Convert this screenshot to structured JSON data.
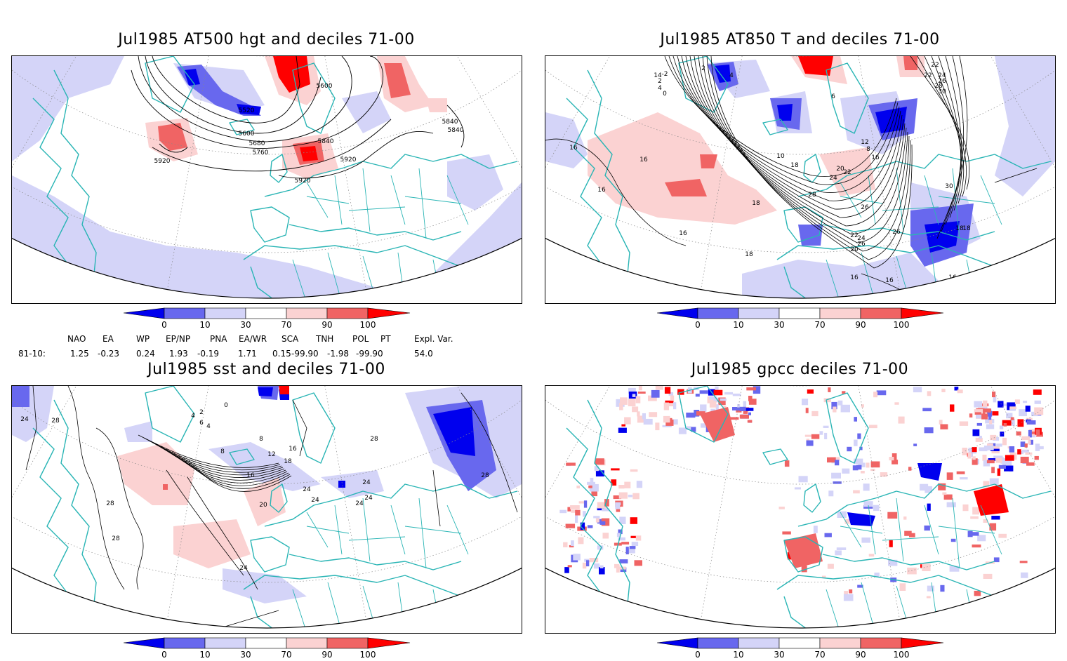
{
  "panels": [
    {
      "title": "Jul1985 AT500 hgt and deciles 71-00",
      "contour_labels": [
        "5520",
        "5600",
        "5680",
        "5760",
        "5840",
        "5920",
        "5920",
        "5600",
        "5840",
        "5840",
        "5920"
      ]
    },
    {
      "title": "Jul1985 AT850 T and deciles 71-00",
      "contour_labels": [
        "16",
        "16",
        "16",
        "16",
        "18",
        "18",
        "18",
        "16",
        "16",
        "16",
        "20",
        "22",
        "24",
        "26",
        "26",
        "28",
        "30",
        "26",
        "24",
        "22",
        "20",
        "16",
        "18",
        "10",
        "8",
        "12",
        "14",
        "2",
        "4",
        "0",
        "-2",
        "2",
        "4",
        "6",
        "22",
        "24",
        "26",
        "28",
        "30",
        "22",
        "18"
      ]
    },
    {
      "title": "Jul1985 sst and deciles 71-00",
      "contour_labels": [
        "24",
        "28",
        "28",
        "28",
        "24",
        "20",
        "16",
        "12",
        "8",
        "4",
        "0",
        "2",
        "4",
        "6",
        "8",
        "16",
        "18",
        "24",
        "24",
        "24",
        "28",
        "28",
        "24",
        "24"
      ]
    },
    {
      "title": "Jul1985 gpcc deciles 71-00",
      "contour_labels": []
    }
  ],
  "colorbar": {
    "labels": [
      "0",
      "10",
      "30",
      "70",
      "90",
      "100"
    ],
    "colors": [
      "#0000ee",
      "#6868ee",
      "#d4d4f8",
      "#ffffff",
      "#fbd2d2",
      "#f06464",
      "#ff0000"
    ]
  },
  "indices": {
    "names": [
      "NAO",
      "EA",
      "WP",
      "EP/NP",
      "PNA",
      "EA/WR",
      "SCA",
      "TNH",
      "POL",
      "PT",
      "Expl. Var."
    ],
    "row_label": "81-10:",
    "values": [
      "1.25",
      "-0.23",
      "0.24",
      "1.93",
      "-0.19",
      "1.71",
      "0.15",
      "-99.90",
      "-1.98",
      "-99.90",
      "54.0"
    ]
  },
  "colors": {
    "coast": "#2ab5b5",
    "grid": "#888888",
    "contour": "#000000"
  }
}
